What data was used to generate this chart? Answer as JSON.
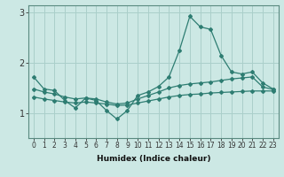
{
  "xlabel": "Humidex (Indice chaleur)",
  "ylabel": "",
  "background_color": "#cce8e4",
  "grid_color": "#aacfca",
  "line_color": "#2e7d72",
  "x": [
    0,
    1,
    2,
    3,
    4,
    5,
    6,
    7,
    8,
    9,
    10,
    11,
    12,
    13,
    14,
    15,
    16,
    17,
    18,
    19,
    20,
    21,
    22,
    23
  ],
  "line1": [
    1.72,
    1.48,
    1.45,
    1.25,
    1.1,
    1.3,
    1.25,
    1.05,
    0.88,
    1.05,
    1.35,
    1.42,
    1.53,
    1.72,
    2.25,
    2.93,
    2.72,
    2.67,
    2.15,
    1.82,
    1.78,
    1.82,
    1.6,
    1.48
  ],
  "line2": [
    1.48,
    1.42,
    1.38,
    1.32,
    1.28,
    1.3,
    1.28,
    1.22,
    1.18,
    1.2,
    1.28,
    1.35,
    1.42,
    1.5,
    1.55,
    1.58,
    1.6,
    1.62,
    1.65,
    1.68,
    1.7,
    1.72,
    1.52,
    1.47
  ],
  "line3": [
    1.32,
    1.28,
    1.25,
    1.22,
    1.2,
    1.22,
    1.2,
    1.18,
    1.15,
    1.16,
    1.2,
    1.24,
    1.28,
    1.32,
    1.35,
    1.37,
    1.38,
    1.4,
    1.41,
    1.42,
    1.43,
    1.44,
    1.44,
    1.44
  ],
  "ylim": [
    0.5,
    3.15
  ],
  "yticks": [
    1,
    2,
    3
  ],
  "xlim": [
    -0.5,
    23.5
  ],
  "xlabel_fontsize": 6.5,
  "tick_fontsize": 5.5,
  "ytick_fontsize": 7
}
